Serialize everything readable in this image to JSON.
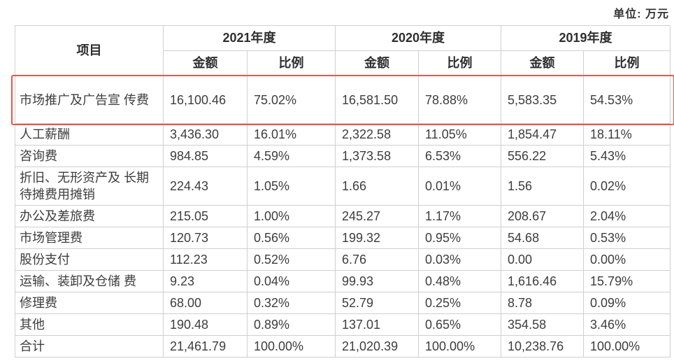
{
  "unit_label": "单位: 万元",
  "table": {
    "item_header": "项目",
    "year_groups": [
      "2021年度",
      "2020年度",
      "2019年度"
    ],
    "sub_headers": [
      "金额",
      "比例",
      "金额",
      "比例",
      "金额",
      "比例"
    ],
    "rows": [
      {
        "item": "市场推广及广告宣 传费",
        "highlighted": true,
        "values": [
          "16,100.46",
          "75.02%",
          "16,581.50",
          "78.88%",
          "5,583.35",
          "54.53%"
        ]
      },
      {
        "item": "人工薪酬",
        "highlighted": false,
        "values": [
          "3,436.30",
          "16.01%",
          "2,322.58",
          "11.05%",
          "1,854.47",
          "18.11%"
        ]
      },
      {
        "item": "咨询费",
        "highlighted": false,
        "values": [
          "984.85",
          "4.59%",
          "1,373.58",
          "6.53%",
          "556.22",
          "5.43%"
        ]
      },
      {
        "item": "折旧、无形资产及 长期待摊费用摊销",
        "highlighted": false,
        "values": [
          "224.43",
          "1.05%",
          "1.66",
          "0.01%",
          "1.56",
          "0.02%"
        ]
      },
      {
        "item": "办公及差旅费",
        "highlighted": false,
        "values": [
          "215.05",
          "1.00%",
          "245.27",
          "1.17%",
          "208.67",
          "2.04%"
        ]
      },
      {
        "item": "市场管理费",
        "highlighted": false,
        "values": [
          "120.73",
          "0.56%",
          "199.32",
          "0.95%",
          "54.68",
          "0.53%"
        ]
      },
      {
        "item": "股份支付",
        "highlighted": false,
        "values": [
          "112.23",
          "0.52%",
          "6.76",
          "0.03%",
          "0.00",
          "0.00%"
        ]
      },
      {
        "item": "运输、装卸及仓储 费",
        "highlighted": false,
        "values": [
          "9.23",
          "0.04%",
          "99.93",
          "0.48%",
          "1,616.46",
          "15.79%"
        ]
      },
      {
        "item": "修理费",
        "highlighted": false,
        "values": [
          "68.00",
          "0.32%",
          "52.79",
          "0.25%",
          "8.78",
          "0.09%"
        ]
      },
      {
        "item": "其他",
        "highlighted": false,
        "values": [
          "190.48",
          "0.89%",
          "137.01",
          "0.65%",
          "354.58",
          "3.46%"
        ]
      },
      {
        "item": "合计",
        "highlighted": false,
        "values": [
          "21,461.79",
          "100.00%",
          "21,020.39",
          "100.00%",
          "10,238.76",
          "100.00%"
        ]
      }
    ]
  },
  "colors": {
    "highlight_border": "#e2574d",
    "grid_border": "#cfcfcf",
    "text": "#3d3d3d"
  }
}
